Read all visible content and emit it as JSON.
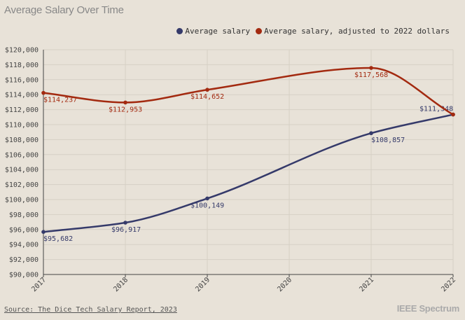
{
  "chart_data": {
    "type": "line",
    "title": "Average Salary Over Time",
    "x": [
      "2017",
      "2018",
      "2019",
      "2020",
      "2021",
      "2022"
    ],
    "series": [
      {
        "name": "Average salary",
        "color": "#353a6a",
        "points": [
          {
            "x": "2017",
            "y": 95682,
            "label": "$95,682"
          },
          {
            "x": "2018",
            "y": 96917,
            "label": "$96,917"
          },
          {
            "x": "2019",
            "y": 100149,
            "label": "$100,149"
          },
          {
            "x": "2021",
            "y": 108857,
            "label": "$108,857"
          },
          {
            "x": "2022",
            "y": 111348,
            "label": "$111,348"
          }
        ]
      },
      {
        "name": "Average salary, adjusted to 2022 dollars",
        "color": "#a32a10",
        "points": [
          {
            "x": "2017",
            "y": 114237,
            "label": "$114,237"
          },
          {
            "x": "2018",
            "y": 112953,
            "label": "$112,953"
          },
          {
            "x": "2019",
            "y": 114652,
            "label": "$114,652"
          },
          {
            "x": "2021",
            "y": 117568,
            "label": "$117,568"
          },
          {
            "x": "2022",
            "y": 111348,
            "label": ""
          }
        ]
      }
    ],
    "yticks": [
      "$90,000",
      "$92,000",
      "$94,000",
      "$96,000",
      "$98,000",
      "$100,000",
      "$102,000",
      "$104,000",
      "$106,000",
      "$108,000",
      "$110,000",
      "$112,000",
      "$114,000",
      "$116,000",
      "$118,000",
      "$120,000"
    ],
    "ylim": [
      90000,
      120000
    ],
    "grid": true,
    "legend": "top-right"
  },
  "source": "Source: The Dice Tech Salary Report, 2023",
  "brand": "IEEE Spectrum"
}
